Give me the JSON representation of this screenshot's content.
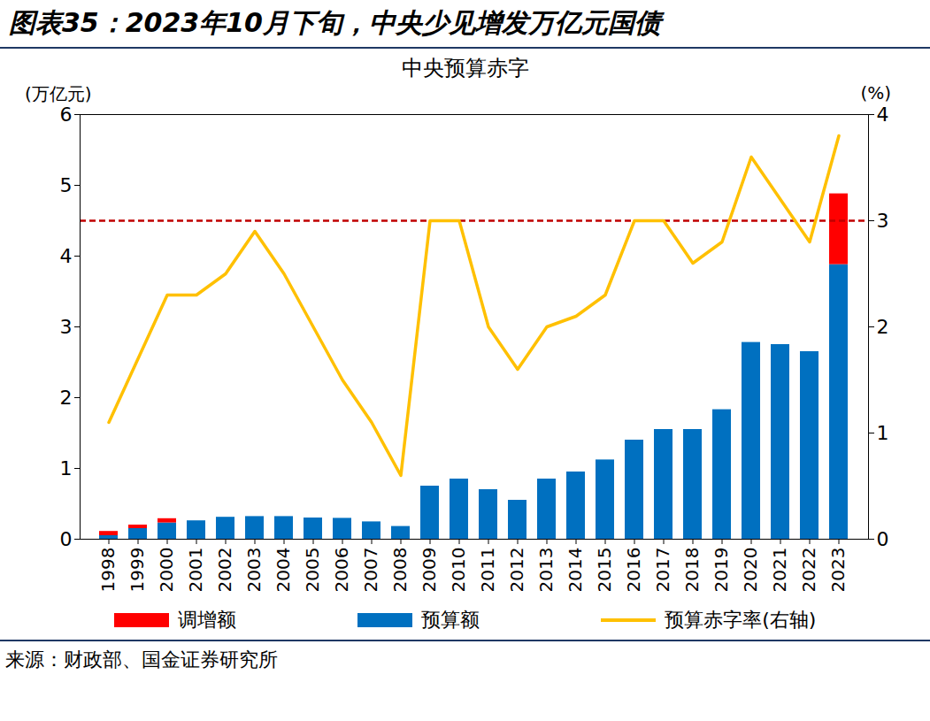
{
  "chart_data": {
    "type": "bar",
    "title": "图表35：2023年10月下旬，中央少见增发万亿元国债",
    "subtitle": "中央预算赤字",
    "y_label": "(万亿元)",
    "y2_label": "(%)",
    "source": "来源：财政部、国金证券研究所",
    "stacked": true,
    "categories": [
      "1998",
      "1999",
      "2000",
      "2001",
      "2002",
      "2003",
      "2004",
      "2005",
      "2006",
      "2007",
      "2008",
      "2009",
      "2010",
      "2011",
      "2012",
      "2013",
      "2014",
      "2015",
      "2016",
      "2017",
      "2018",
      "2019",
      "2020",
      "2021",
      "2022",
      "2023"
    ],
    "series": [
      {
        "name": "调增额",
        "type": "bar",
        "color": "#ff0000",
        "values": [
          0.06,
          0.05,
          0.06,
          null,
          null,
          null,
          null,
          null,
          null,
          null,
          null,
          null,
          null,
          null,
          null,
          null,
          null,
          null,
          null,
          null,
          null,
          null,
          null,
          null,
          null,
          1.0
        ]
      },
      {
        "name": "预算额",
        "type": "bar",
        "color": "#0070c0",
        "values": [
          0.05,
          0.15,
          0.23,
          0.26,
          0.31,
          0.32,
          0.32,
          0.3,
          0.295,
          0.245,
          0.18,
          0.75,
          0.85,
          0.7,
          0.55,
          0.85,
          0.95,
          1.12,
          1.4,
          1.55,
          1.55,
          1.83,
          2.78,
          2.75,
          2.65,
          3.88
        ]
      },
      {
        "name": "预算赤字率(右轴)",
        "type": "line",
        "axis": "y2",
        "color": "#ffc000",
        "values": [
          1.1,
          1.7,
          2.3,
          2.3,
          2.5,
          2.9,
          2.5,
          2.0,
          1.5,
          1.1,
          0.6,
          3.0,
          3.0,
          2.0,
          1.6,
          2.0,
          2.1,
          2.3,
          3.0,
          3.0,
          2.6,
          2.8,
          3.6,
          3.2,
          2.8,
          3.8
        ]
      }
    ],
    "reference_lines": [
      {
        "value": 3,
        "axis": "y2",
        "color": "#c00000",
        "line_style": "dashed"
      }
    ],
    "ylim": [
      0,
      6
    ],
    "yticks": [
      0,
      1,
      2,
      3,
      4,
      5,
      6
    ],
    "y2lim": [
      0,
      4
    ],
    "y2ticks": [
      0,
      1,
      2,
      3,
      4
    ],
    "grid": false,
    "legend": "bottom"
  }
}
